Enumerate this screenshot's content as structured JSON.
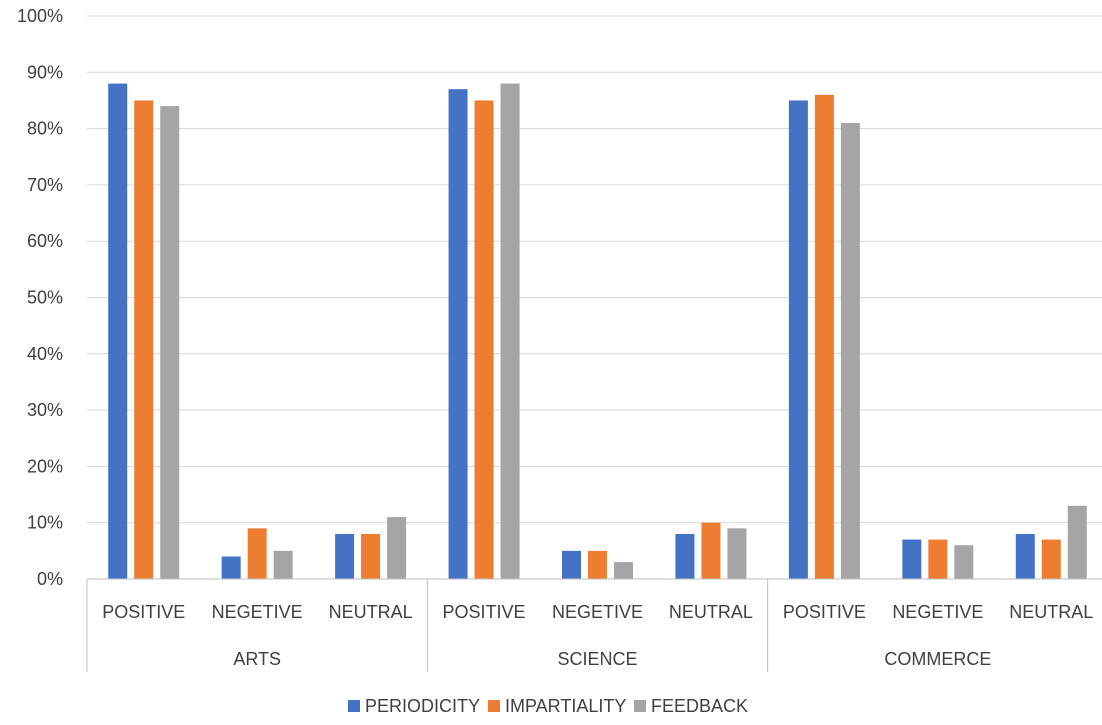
{
  "chart_data": {
    "type": "bar",
    "title": "",
    "xlabel": "",
    "ylabel": "",
    "ylim": [
      0,
      100
    ],
    "yticks": [
      "0%",
      "10%",
      "20%",
      "30%",
      "40%",
      "50%",
      "60%",
      "70%",
      "80%",
      "90%",
      "100%"
    ],
    "grid": true,
    "legend_position": "bottom",
    "groups": [
      {
        "label": "ARTS",
        "categories": [
          "POSITIVE",
          "NEGETIVE",
          "NEUTRAL"
        ]
      },
      {
        "label": "SCIENCE",
        "categories": [
          "POSITIVE",
          "NEGETIVE",
          "NEUTRAL"
        ]
      },
      {
        "label": "COMMERCE",
        "categories": [
          "POSITIVE",
          "NEGETIVE",
          "NEUTRAL"
        ]
      }
    ],
    "categories": [
      "POSITIVE",
      "NEGETIVE",
      "NEUTRAL",
      "POSITIVE",
      "NEGETIVE",
      "NEUTRAL",
      "POSITIVE",
      "NEGETIVE",
      "NEUTRAL"
    ],
    "series": [
      {
        "name": "PERIODICITY",
        "color": "#4472C4",
        "values": [
          88,
          4,
          8,
          87,
          5,
          8,
          85,
          7,
          8
        ]
      },
      {
        "name": "IMPARTIALITY",
        "color": "#ED7D31",
        "values": [
          85,
          9,
          8,
          85,
          5,
          10,
          86,
          7,
          7
        ]
      },
      {
        "name": "FEEDBACK",
        "color": "#A5A5A5",
        "values": [
          84,
          5,
          11,
          88,
          3,
          9,
          81,
          6,
          13
        ]
      }
    ]
  }
}
